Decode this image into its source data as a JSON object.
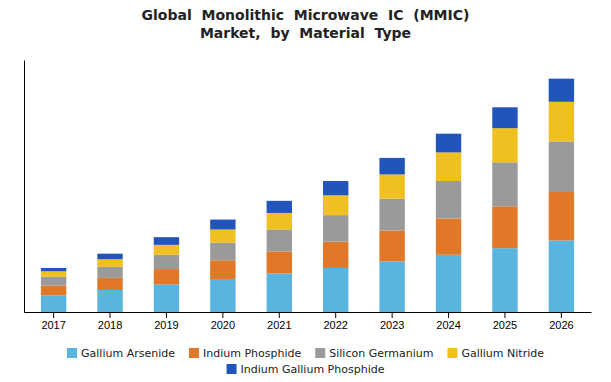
{
  "chart_data": {
    "type": "bar",
    "title": "Global  Monolithic  Microwave  IC  (MMIC)\nMarket,  by  Material  Type",
    "categories": [
      2017,
      2018,
      2019,
      2020,
      2021,
      2022,
      2023,
      2024,
      2025,
      2026
    ],
    "series": [
      {
        "name": "Gallium Arsenide",
        "color": "#5ab4e0",
        "values": [
          1.5,
          2.0,
          2.5,
          3.0,
          3.5,
          4.0,
          4.6,
          5.2,
          5.8,
          6.5
        ]
      },
      {
        "name": "Indium Phosphide",
        "color": "#e07828",
        "values": [
          0.9,
          1.1,
          1.4,
          1.7,
          2.0,
          2.4,
          2.8,
          3.3,
          3.8,
          4.4
        ]
      },
      {
        "name": "Silicon Germanium",
        "color": "#9a9a9a",
        "values": [
          0.8,
          1.0,
          1.3,
          1.6,
          2.0,
          2.4,
          2.9,
          3.4,
          4.0,
          4.6
        ]
      },
      {
        "name": "Gallium Nitride",
        "color": "#f0c020",
        "values": [
          0.5,
          0.7,
          0.9,
          1.2,
          1.5,
          1.8,
          2.2,
          2.6,
          3.1,
          3.6
        ]
      },
      {
        "name": "Indium Gallium Phosphide",
        "color": "#2255bb",
        "values": [
          0.3,
          0.5,
          0.7,
          0.9,
          1.1,
          1.3,
          1.5,
          1.7,
          1.9,
          2.1
        ]
      }
    ],
    "stacked": true,
    "ylim": [
      0,
      22.896
    ],
    "grid": false,
    "legend": "bottom",
    "tick_labels": "x",
    "data_labels": false
  }
}
